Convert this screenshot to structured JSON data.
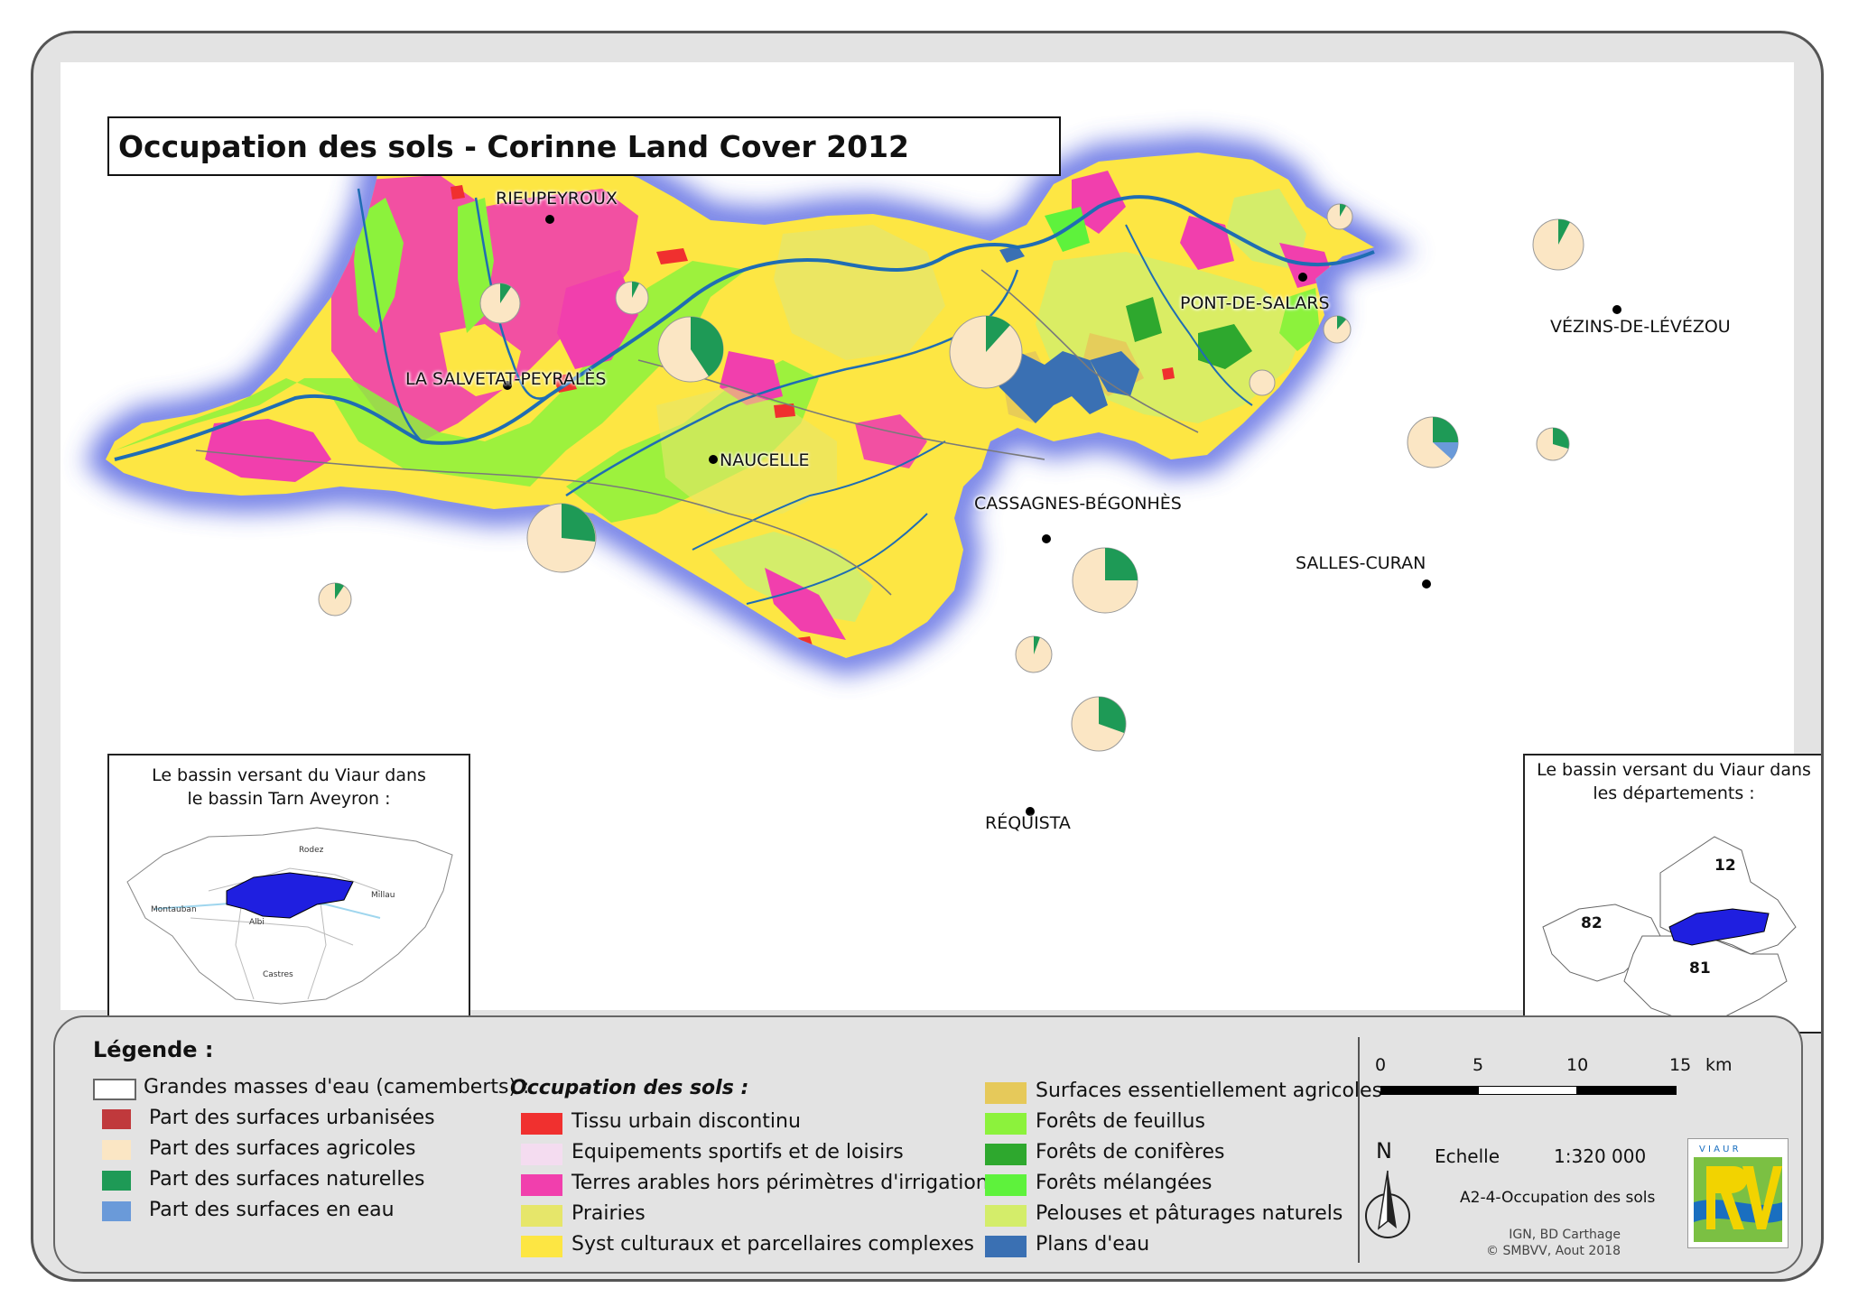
{
  "title": "Occupation des sols - Corinne Land Cover 2012",
  "towns": [
    {
      "name": "RIEUPEYROUX"
    },
    {
      "name": "LA SALVETAT-PEYRALÈS"
    },
    {
      "name": "NAUCELLE"
    },
    {
      "name": "PONT-DE-SALARS"
    },
    {
      "name": "VÉZINS-DE-LÉVÉZOU"
    },
    {
      "name": "CASSAGNES-BÉGONHÈS"
    },
    {
      "name": "SALLES-CURAN"
    },
    {
      "name": "RÉQUISTA"
    }
  ],
  "inset_left": {
    "title_line1": "Le bassin versant du Viaur dans",
    "title_line2": "le bassin Tarn Aveyron :",
    "labels": {
      "rodez": "Rodez",
      "montauban": "Montauban",
      "albi": "Albi",
      "millau": "Millau",
      "castres": "Castres"
    }
  },
  "inset_right": {
    "title_line1": "Le bassin versant du Viaur dans",
    "title_line2": "les départements :",
    "depts": {
      "d12": "12",
      "d82": "82",
      "d81": "81"
    }
  },
  "legend": {
    "title": "Légende :",
    "pie_header": "Grandes masses d'eau (camemberts) :",
    "pie_items": [
      {
        "label": "Part des surfaces urbanisées",
        "color": "#c0393c"
      },
      {
        "label": "Part des surfaces agricoles",
        "color": "#fbe6c4"
      },
      {
        "label": "Part des surfaces naturelles",
        "color": "#1e9a56"
      },
      {
        "label": "Part des surfaces en eau",
        "color": "#6a9ad9"
      }
    ],
    "occ_header": "Occupation des sols :",
    "occ_items": [
      {
        "label": "Tissu urbain discontinu",
        "color": "#f0302f"
      },
      {
        "label": "Equipements sportifs et de loisirs",
        "color": "#f4dcf0"
      },
      {
        "label": "Terres arables hors périmètres d'irrigation",
        "color": "#f13fad"
      },
      {
        "label": "Prairies",
        "color": "#e6e66a"
      },
      {
        "label": "Syst culturaux et parcellaires complexes",
        "color": "#fde643"
      },
      {
        "label": "Surfaces essentiellement agricoles",
        "color": "#e6c95a"
      },
      {
        "label": "Forêts de feuillus",
        "color": "#8cf23c"
      },
      {
        "label": "Forêts de conifères",
        "color": "#2ea82e"
      },
      {
        "label": "Forêts mélangées",
        "color": "#5ef23c"
      },
      {
        "label": "Pelouses et pâturages naturels",
        "color": "#d4ed6a"
      },
      {
        "label": "Plans d'eau",
        "color": "#3a70b3"
      }
    ]
  },
  "scale": {
    "ticks": [
      "0",
      "5",
      "10",
      "15"
    ],
    "unit": "km",
    "echelle_label": "Echelle",
    "ratio": "1:320 000"
  },
  "map_code": "A2-4-Occupation des sols",
  "credits": {
    "line1": "IGN, BD Carthage",
    "line2": "© SMBVV, Aout 2018"
  },
  "north": "N",
  "logo_text": "V I A U R"
}
